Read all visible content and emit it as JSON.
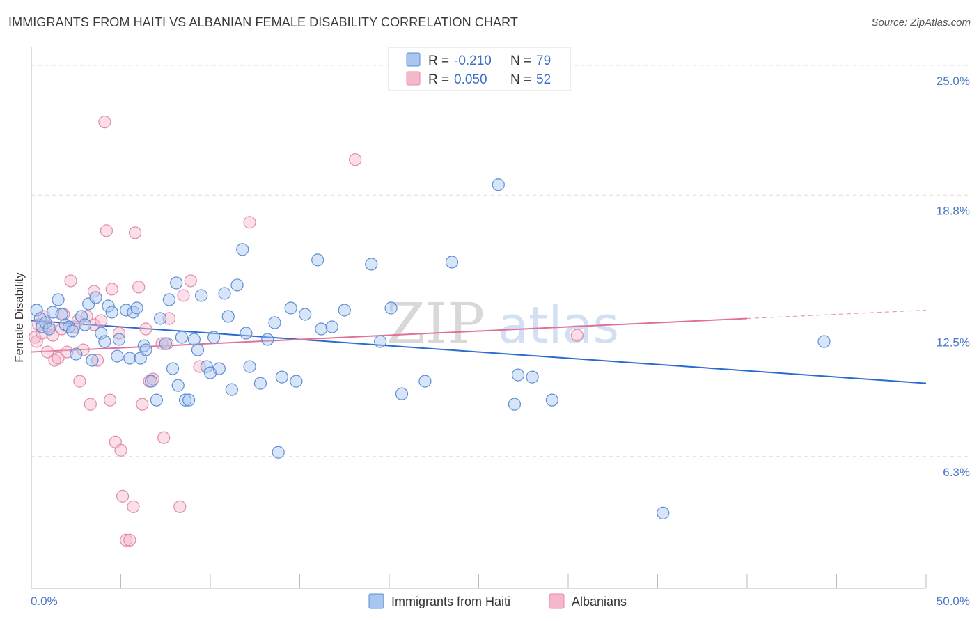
{
  "title": "IMMIGRANTS FROM HAITI VS ALBANIAN FEMALE DISABILITY CORRELATION CHART",
  "source": "Source: ZipAtlas.com",
  "watermark": {
    "zip": "ZIP",
    "atlas": "atlas"
  },
  "legend": {
    "r_label": "R =",
    "n_label": "N =",
    "haiti": {
      "r": "-0.210",
      "n": "79"
    },
    "albanians": {
      "r": "0.050",
      "n": "52"
    }
  },
  "colors": {
    "haiti_fill": "#a9c6ef",
    "haiti_stroke": "#5b8fd6",
    "haiti_line": "#2b6bcf",
    "alb_fill": "#f5b8cb",
    "alb_stroke": "#e58aa8",
    "alb_line": "#e0709a",
    "grid": "#dcdcdc",
    "tick_text": "#4a78c8"
  },
  "chart_data": {
    "type": "scatter",
    "title": "IMMIGRANTS FROM HAITI VS ALBANIAN FEMALE DISABILITY CORRELATION CHART",
    "xlabel": "",
    "ylabel": "Female Disability",
    "xlim": [
      0,
      50
    ],
    "ylim": [
      0,
      25.8
    ],
    "x_tick_labels": [
      "0.0%",
      "50.0%"
    ],
    "y_ticks": [
      {
        "value": 6.3,
        "label": "6.3%"
      },
      {
        "value": 12.5,
        "label": "12.5%"
      },
      {
        "value": 18.8,
        "label": "18.8%"
      },
      {
        "value": 25.0,
        "label": "25.0%"
      }
    ],
    "series": [
      {
        "name": "Immigrants from Haiti",
        "r": -0.21,
        "n": 79,
        "trend": {
          "x": [
            0,
            50
          ],
          "y": [
            12.8,
            9.8
          ]
        },
        "points": [
          [
            0.3,
            13.3
          ],
          [
            0.5,
            12.9
          ],
          [
            0.6,
            12.5
          ],
          [
            0.8,
            12.7
          ],
          [
            1.0,
            12.4
          ],
          [
            1.2,
            13.2
          ],
          [
            1.5,
            13.8
          ],
          [
            1.7,
            13.1
          ],
          [
            1.9,
            12.6
          ],
          [
            2.1,
            12.5
          ],
          [
            2.3,
            12.3
          ],
          [
            2.5,
            11.2
          ],
          [
            2.8,
            13.0
          ],
          [
            3.0,
            12.6
          ],
          [
            3.2,
            13.6
          ],
          [
            3.4,
            10.9
          ],
          [
            3.6,
            13.9
          ],
          [
            3.9,
            12.2
          ],
          [
            4.1,
            11.8
          ],
          [
            4.3,
            13.5
          ],
          [
            4.5,
            13.2
          ],
          [
            4.8,
            11.1
          ],
          [
            4.9,
            11.9
          ],
          [
            5.3,
            13.3
          ],
          [
            5.5,
            11.0
          ],
          [
            5.7,
            13.2
          ],
          [
            5.9,
            13.4
          ],
          [
            6.1,
            11.0
          ],
          [
            6.3,
            11.6
          ],
          [
            6.4,
            11.4
          ],
          [
            6.7,
            9.9
          ],
          [
            7.0,
            9.0
          ],
          [
            7.2,
            12.9
          ],
          [
            7.5,
            11.7
          ],
          [
            7.7,
            13.8
          ],
          [
            7.9,
            10.5
          ],
          [
            8.1,
            14.6
          ],
          [
            8.2,
            9.7
          ],
          [
            8.4,
            12.0
          ],
          [
            8.6,
            9.0
          ],
          [
            8.8,
            9.0
          ],
          [
            9.1,
            11.9
          ],
          [
            9.3,
            11.4
          ],
          [
            9.5,
            14.0
          ],
          [
            9.8,
            10.6
          ],
          [
            10.0,
            10.3
          ],
          [
            10.2,
            12.0
          ],
          [
            10.5,
            10.5
          ],
          [
            10.8,
            14.1
          ],
          [
            11.0,
            13.0
          ],
          [
            11.2,
            9.5
          ],
          [
            11.5,
            14.5
          ],
          [
            11.8,
            16.2
          ],
          [
            12.0,
            12.2
          ],
          [
            12.2,
            10.6
          ],
          [
            12.8,
            9.8
          ],
          [
            13.2,
            11.9
          ],
          [
            13.6,
            12.7
          ],
          [
            13.8,
            6.5
          ],
          [
            14.0,
            10.1
          ],
          [
            14.5,
            13.4
          ],
          [
            14.8,
            9.9
          ],
          [
            15.3,
            13.1
          ],
          [
            16.0,
            15.7
          ],
          [
            16.2,
            12.4
          ],
          [
            16.8,
            12.5
          ],
          [
            17.5,
            13.3
          ],
          [
            19.0,
            15.5
          ],
          [
            19.5,
            11.8
          ],
          [
            20.1,
            13.4
          ],
          [
            20.7,
            9.3
          ],
          [
            22.0,
            9.9
          ],
          [
            23.5,
            15.6
          ],
          [
            26.1,
            19.3
          ],
          [
            27.0,
            8.8
          ],
          [
            27.2,
            10.2
          ],
          [
            28.0,
            10.1
          ],
          [
            29.1,
            9.0
          ],
          [
            35.3,
            3.6
          ],
          [
            44.3,
            11.8
          ]
        ]
      },
      {
        "name": "Albanians",
        "r": 0.05,
        "n": 52,
        "trend": {
          "x": [
            0,
            40
          ],
          "y": [
            11.3,
            12.9
          ]
        },
        "trend_dashed": {
          "x": [
            40,
            50
          ],
          "y": [
            12.9,
            13.3
          ]
        },
        "points": [
          [
            0.2,
            12.0
          ],
          [
            0.3,
            11.8
          ],
          [
            0.4,
            12.6
          ],
          [
            0.6,
            12.2
          ],
          [
            0.7,
            13.0
          ],
          [
            0.9,
            11.3
          ],
          [
            1.0,
            12.5
          ],
          [
            1.2,
            12.1
          ],
          [
            1.3,
            10.9
          ],
          [
            1.5,
            11.0
          ],
          [
            1.7,
            12.4
          ],
          [
            1.8,
            13.1
          ],
          [
            2.0,
            11.3
          ],
          [
            2.2,
            14.7
          ],
          [
            2.4,
            12.5
          ],
          [
            2.6,
            12.8
          ],
          [
            2.7,
            9.9
          ],
          [
            2.9,
            11.4
          ],
          [
            3.1,
            13.0
          ],
          [
            3.3,
            8.8
          ],
          [
            3.5,
            12.6
          ],
          [
            3.7,
            10.9
          ],
          [
            3.9,
            12.8
          ],
          [
            4.1,
            22.3
          ],
          [
            4.2,
            17.1
          ],
          [
            4.4,
            9.0
          ],
          [
            4.5,
            14.3
          ],
          [
            4.7,
            7.0
          ],
          [
            4.9,
            12.2
          ],
          [
            5.0,
            6.6
          ],
          [
            5.1,
            4.4
          ],
          [
            5.3,
            2.3
          ],
          [
            5.5,
            2.3
          ],
          [
            5.7,
            3.9
          ],
          [
            5.8,
            17.0
          ],
          [
            6.0,
            14.4
          ],
          [
            6.2,
            8.8
          ],
          [
            6.4,
            12.4
          ],
          [
            6.6,
            9.9
          ],
          [
            6.8,
            10.0
          ],
          [
            7.3,
            11.7
          ],
          [
            7.4,
            7.2
          ],
          [
            7.6,
            11.7
          ],
          [
            7.7,
            12.9
          ],
          [
            8.3,
            3.9
          ],
          [
            8.5,
            14.0
          ],
          [
            8.9,
            14.7
          ],
          [
            9.4,
            10.6
          ],
          [
            12.2,
            17.5
          ],
          [
            18.1,
            20.5
          ],
          [
            30.5,
            12.1
          ],
          [
            3.5,
            14.2
          ]
        ]
      }
    ]
  },
  "bottom_legend": {
    "haiti": "Immigrants from Haiti",
    "albanians": "Albanians"
  }
}
